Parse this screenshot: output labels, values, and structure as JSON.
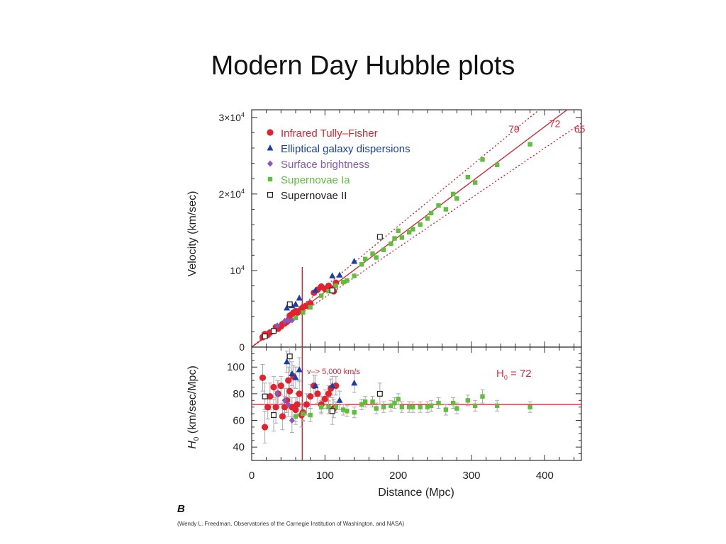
{
  "slide": {
    "title": "Modern Day Hubble plots",
    "panel_letter": "B",
    "credit": "(Wendy L. Freedman, Observatories of the Carnegie Institution of Washington, and NASA)"
  },
  "chart_data": [
    {
      "type": "scatter",
      "panel": "top",
      "xlabel": "",
      "ylabel": "Velocity (km/sec)",
      "xlim": [
        0,
        450
      ],
      "ylim": [
        0,
        31000
      ],
      "yticks": [
        {
          "value": 0,
          "label": "0"
        },
        {
          "value": 10000,
          "base": "10",
          "exp": "4"
        },
        {
          "value": 20000,
          "base": "2×10",
          "exp": "4"
        },
        {
          "value": 30000,
          "base": "3×10",
          "exp": "4"
        }
      ],
      "vertical_line_x": 69,
      "hubble_lines": [
        {
          "label": "79",
          "slope": 79,
          "style": "dotted",
          "color": "#d42a3a"
        },
        {
          "label": "72",
          "slope": 72,
          "style": "solid",
          "color": "#d42a3a"
        },
        {
          "label": "65",
          "slope": 65,
          "style": "dotted",
          "color": "#d42a3a"
        }
      ],
      "legend": {
        "placement": "top-left",
        "entries": [
          {
            "label": "Infrared Tully–Fisher",
            "marker": "circle",
            "color": "#e0232e"
          },
          {
            "label": "Elliptical galaxy dispersions",
            "marker": "triangle",
            "color": "#1b3fa8"
          },
          {
            "label": "Surface brightness",
            "marker": "diamond",
            "color": "#8b55c0"
          },
          {
            "label": "Supernovae Ia",
            "marker": "square",
            "color": "#5fbf3a"
          },
          {
            "label": "Supernovae II",
            "marker": "open-square",
            "color": "#222222"
          }
        ]
      },
      "series": [
        {
          "name": "Infrared Tully–Fisher",
          "marker": "circle",
          "color": "#e0232e",
          "points": [
            [
              15,
              1300
            ],
            [
              18,
              1700
            ],
            [
              22,
              1600
            ],
            [
              25,
              1900
            ],
            [
              30,
              2100
            ],
            [
              33,
              2600
            ],
            [
              36,
              2400
            ],
            [
              40,
              2700
            ],
            [
              42,
              3000
            ],
            [
              45,
              3100
            ],
            [
              48,
              3300
            ],
            [
              50,
              3500
            ],
            [
              52,
              4100
            ],
            [
              55,
              4300
            ],
            [
              57,
              4500
            ],
            [
              60,
              4700
            ],
            [
              62,
              4500
            ],
            [
              65,
              4700
            ],
            [
              68,
              5000
            ],
            [
              70,
              5200
            ],
            [
              75,
              5400
            ],
            [
              80,
              5700
            ],
            [
              85,
              7100
            ],
            [
              90,
              7500
            ],
            [
              95,
              7900
            ],
            [
              100,
              7600
            ],
            [
              105,
              8000
            ],
            [
              108,
              7700
            ],
            [
              112,
              7300
            ],
            [
              115,
              8400
            ]
          ]
        },
        {
          "name": "Elliptical galaxy dispersions",
          "marker": "triangle",
          "color": "#1b3fa8",
          "points": [
            [
              48,
              5100
            ],
            [
              55,
              5400
            ],
            [
              60,
              5600
            ],
            [
              65,
              6400
            ],
            [
              87,
              7400
            ],
            [
              110,
              9300
            ],
            [
              120,
              9400
            ],
            [
              140,
              11200
            ]
          ]
        },
        {
          "name": "Surface brightness",
          "marker": "diamond",
          "color": "#8b55c0",
          "points": [
            [
              35,
              2800
            ],
            [
              45,
              3400
            ],
            [
              50,
              3500
            ],
            [
              55,
              3500
            ]
          ]
        },
        {
          "name": "Supernovae Ia",
          "marker": "square",
          "color": "#5fbf3a",
          "points": [
            [
              60,
              3800
            ],
            [
              70,
              4500
            ],
            [
              80,
              5200
            ],
            [
              95,
              6700
            ],
            [
              105,
              7300
            ],
            [
              115,
              8000
            ],
            [
              125,
              8500
            ],
            [
              130,
              8700
            ],
            [
              140,
              9300
            ],
            [
              150,
              10800
            ],
            [
              155,
              11500
            ],
            [
              165,
              12200
            ],
            [
              170,
              11700
            ],
            [
              180,
              12700
            ],
            [
              190,
              13500
            ],
            [
              195,
              14200
            ],
            [
              200,
              15200
            ],
            [
              205,
              14300
            ],
            [
              215,
              15000
            ],
            [
              220,
              15400
            ],
            [
              230,
              16000
            ],
            [
              240,
              16800
            ],
            [
              245,
              17500
            ],
            [
              255,
              18500
            ],
            [
              265,
              18000
            ],
            [
              275,
              20000
            ],
            [
              280,
              19400
            ],
            [
              295,
              22200
            ],
            [
              305,
              21500
            ],
            [
              315,
              24500
            ],
            [
              335,
              23800
            ],
            [
              380,
              26500
            ]
          ]
        },
        {
          "name": "Supernovae II",
          "marker": "open-square",
          "color": "#222222",
          "points": [
            [
              18,
              1400
            ],
            [
              30,
              2100
            ],
            [
              52,
              5600
            ],
            [
              110,
              7400
            ],
            [
              175,
              14400
            ]
          ]
        }
      ]
    },
    {
      "type": "scatter",
      "panel": "bottom",
      "xlabel": "Distance (Mpc)",
      "ylabel_symbol": "H",
      "ylabel_sub": "0",
      "ylabel_units": " (km/sec/Mpc)",
      "xlim": [
        0,
        450
      ],
      "ylim": [
        30,
        115
      ],
      "xticks": [
        0,
        100,
        200,
        300,
        400
      ],
      "yticks": [
        40,
        60,
        80,
        100
      ],
      "vertical_line_x": 69,
      "h0_line": 72,
      "annotation": "v–> 5,000 km/s",
      "h0_label_symbol": "H",
      "h0_label_sub": "0",
      "h0_label_value": " = 72",
      "series": [
        {
          "name": "Infrared Tully–Fisher",
          "marker": "circle",
          "color": "#e0232e",
          "points": [
            [
              15,
              92,
              10
            ],
            [
              18,
              55,
              12
            ],
            [
              22,
              70,
              9
            ],
            [
              25,
              78,
              10
            ],
            [
              30,
              85,
              8
            ],
            [
              33,
              70,
              12
            ],
            [
              36,
              80,
              10
            ],
            [
              40,
              86,
              7
            ],
            [
              42,
              63,
              10
            ],
            [
              45,
              70,
              8
            ],
            [
              48,
              75,
              9
            ],
            [
              50,
              90,
              10
            ],
            [
              52,
              82,
              8
            ],
            [
              55,
              70,
              7
            ],
            [
              57,
              93,
              8
            ],
            [
              60,
              68,
              9
            ],
            [
              62,
              72,
              8
            ],
            [
              65,
              80,
              10
            ],
            [
              68,
              64,
              9
            ],
            [
              70,
              66,
              7
            ],
            [
              75,
              72,
              8
            ],
            [
              80,
              78,
              9
            ],
            [
              85,
              86,
              8
            ],
            [
              90,
              80,
              7
            ],
            [
              95,
              72,
              6
            ],
            [
              100,
              76,
              7
            ],
            [
              105,
              80,
              6
            ],
            [
              108,
              84,
              7
            ],
            [
              112,
              69,
              7
            ],
            [
              115,
              86,
              7
            ]
          ]
        },
        {
          "name": "Elliptical galaxy dispersions",
          "marker": "triangle",
          "color": "#1b3fa8",
          "points": [
            [
              48,
              104,
              8
            ],
            [
              55,
              95,
              9
            ],
            [
              60,
              92,
              8
            ],
            [
              65,
              98,
              9
            ],
            [
              87,
              86,
              8
            ],
            [
              110,
              86,
              7
            ],
            [
              120,
              75,
              7
            ],
            [
              140,
              88,
              7
            ]
          ]
        },
        {
          "name": "Surface brightness",
          "marker": "diamond",
          "color": "#8b55c0",
          "points": [
            [
              35,
              80,
              10
            ],
            [
              45,
              75,
              9
            ],
            [
              50,
              72,
              9
            ],
            [
              55,
              60,
              9
            ]
          ]
        },
        {
          "name": "Supernovae Ia",
          "marker": "square",
          "color": "#5fbf3a",
          "points": [
            [
              60,
              63,
              6
            ],
            [
              70,
              65,
              5
            ],
            [
              80,
              64,
              5
            ],
            [
              95,
              70,
              5
            ],
            [
              105,
              70,
              5
            ],
            [
              115,
              70,
              4
            ],
            [
              125,
              68,
              4
            ],
            [
              130,
              67,
              4
            ],
            [
              140,
              66,
              4
            ],
            [
              150,
              72,
              4
            ],
            [
              155,
              74,
              4
            ],
            [
              165,
              74,
              4
            ],
            [
              170,
              69,
              4
            ],
            [
              180,
              70,
              4
            ],
            [
              190,
              71,
              4
            ],
            [
              195,
              73,
              4
            ],
            [
              200,
              76,
              4
            ],
            [
              205,
              70,
              4
            ],
            [
              215,
              70,
              4
            ],
            [
              220,
              70,
              4
            ],
            [
              230,
              70,
              4
            ],
            [
              240,
              70,
              4
            ],
            [
              245,
              71,
              4
            ],
            [
              255,
              73,
              4
            ],
            [
              265,
              68,
              4
            ],
            [
              275,
              73,
              4
            ],
            [
              280,
              69,
              4
            ],
            [
              295,
              75,
              4
            ],
            [
              305,
              71,
              4
            ],
            [
              315,
              78,
              5
            ],
            [
              335,
              71,
              4
            ],
            [
              380,
              70,
              4
            ]
          ]
        },
        {
          "name": "Supernovae II",
          "marker": "open-square",
          "color": "#222222",
          "points": [
            [
              18,
              78,
              10
            ],
            [
              30,
              64,
              12
            ],
            [
              52,
              108,
              12
            ],
            [
              110,
              67,
              10
            ],
            [
              175,
              80,
              8
            ]
          ]
        }
      ]
    }
  ]
}
